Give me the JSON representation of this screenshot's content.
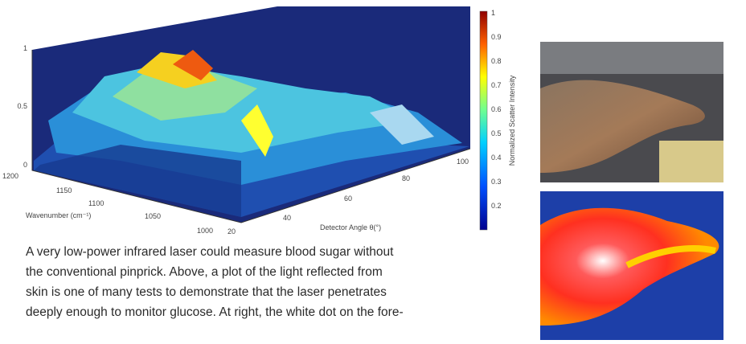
{
  "figure": {
    "plot": {
      "z_ticks": [
        "1",
        "0.5",
        "0"
      ],
      "wavenumber_ticks": [
        "1200",
        "1150",
        "1100",
        "1050",
        "1000"
      ],
      "angle_ticks": [
        "20",
        "40",
        "60",
        "80",
        "100"
      ],
      "wavenumber_label": "Wavenumber (cm⁻¹)",
      "angle_label": "Detector Angle θ(°)",
      "colorbar_label": "Normalized Scatter Intensity",
      "colorbar_ticks": [
        "1",
        "0.9",
        "0.8",
        "0.7",
        "0.6",
        "0.5",
        "0.4",
        "0.3",
        "0.2"
      ]
    },
    "caption": [
      "A very low-power infrared laser could measure blood sugar without",
      "the conventional pinprick. Above, a plot of the light reflected from",
      "skin is one of many tests to demonstrate that the laser penetrates",
      "deeply enough to monitor glucose. At right, the white dot on the fore-"
    ]
  }
}
